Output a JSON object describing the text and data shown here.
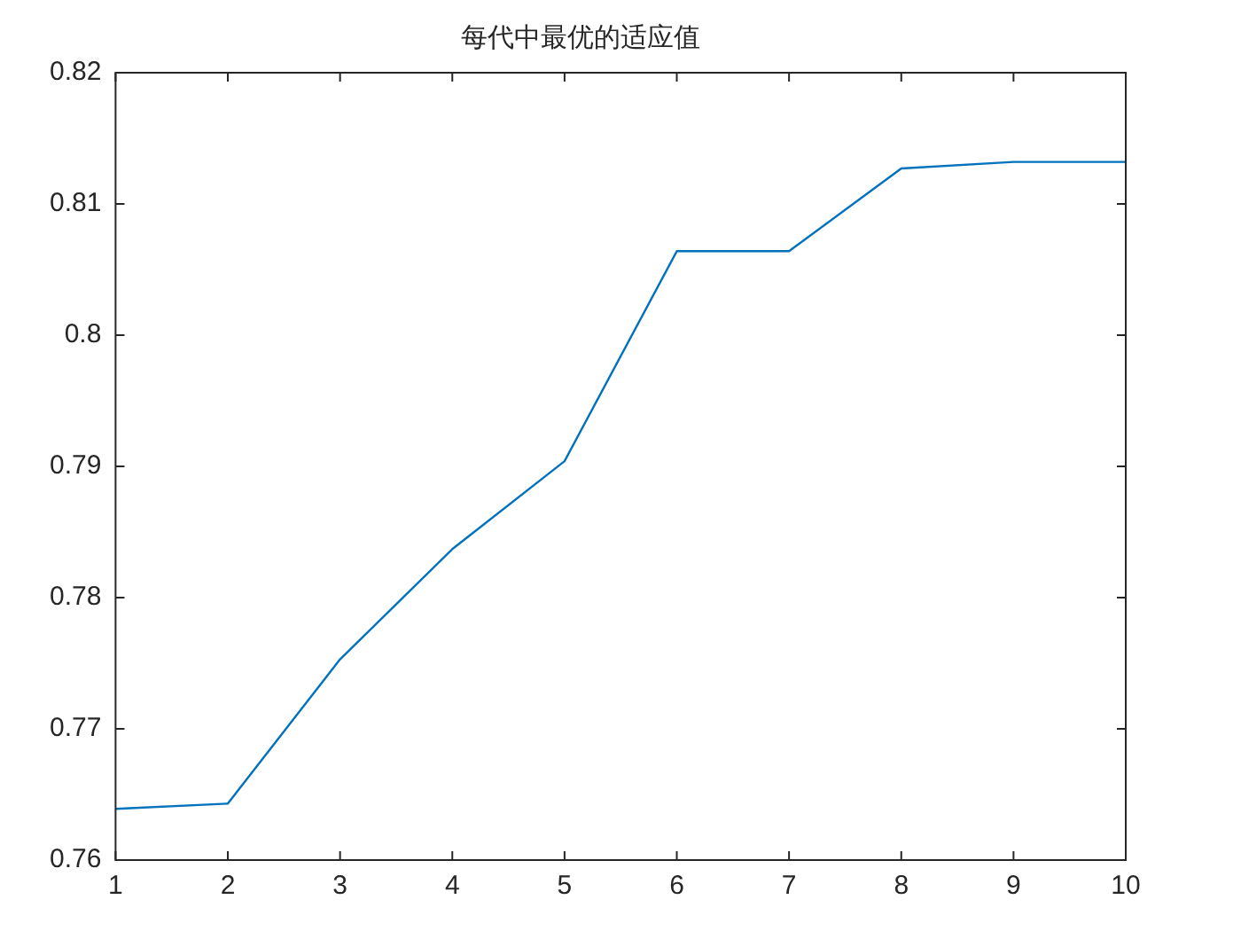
{
  "chart_data": {
    "type": "line",
    "title": "每代中最优的适应值",
    "x": [
      1,
      2,
      3,
      4,
      5,
      6,
      7,
      8,
      9,
      10
    ],
    "series": [
      {
        "color": "#0072bd",
        "values": [
          0.7639,
          0.7643,
          0.7753,
          0.7837,
          0.7904,
          0.8064,
          0.8064,
          0.8127,
          0.8132,
          0.8132
        ]
      }
    ],
    "xlim": [
      1,
      10
    ],
    "xticks": [
      1,
      2,
      3,
      4,
      5,
      6,
      7,
      8,
      9,
      10
    ],
    "ylim": [
      0.76,
      0.82
    ],
    "yticks": [
      0.76,
      0.77,
      0.78,
      0.79,
      0.8,
      0.81,
      0.82
    ],
    "grid": false,
    "legend": false,
    "marker": "none",
    "line_style": "solid"
  }
}
